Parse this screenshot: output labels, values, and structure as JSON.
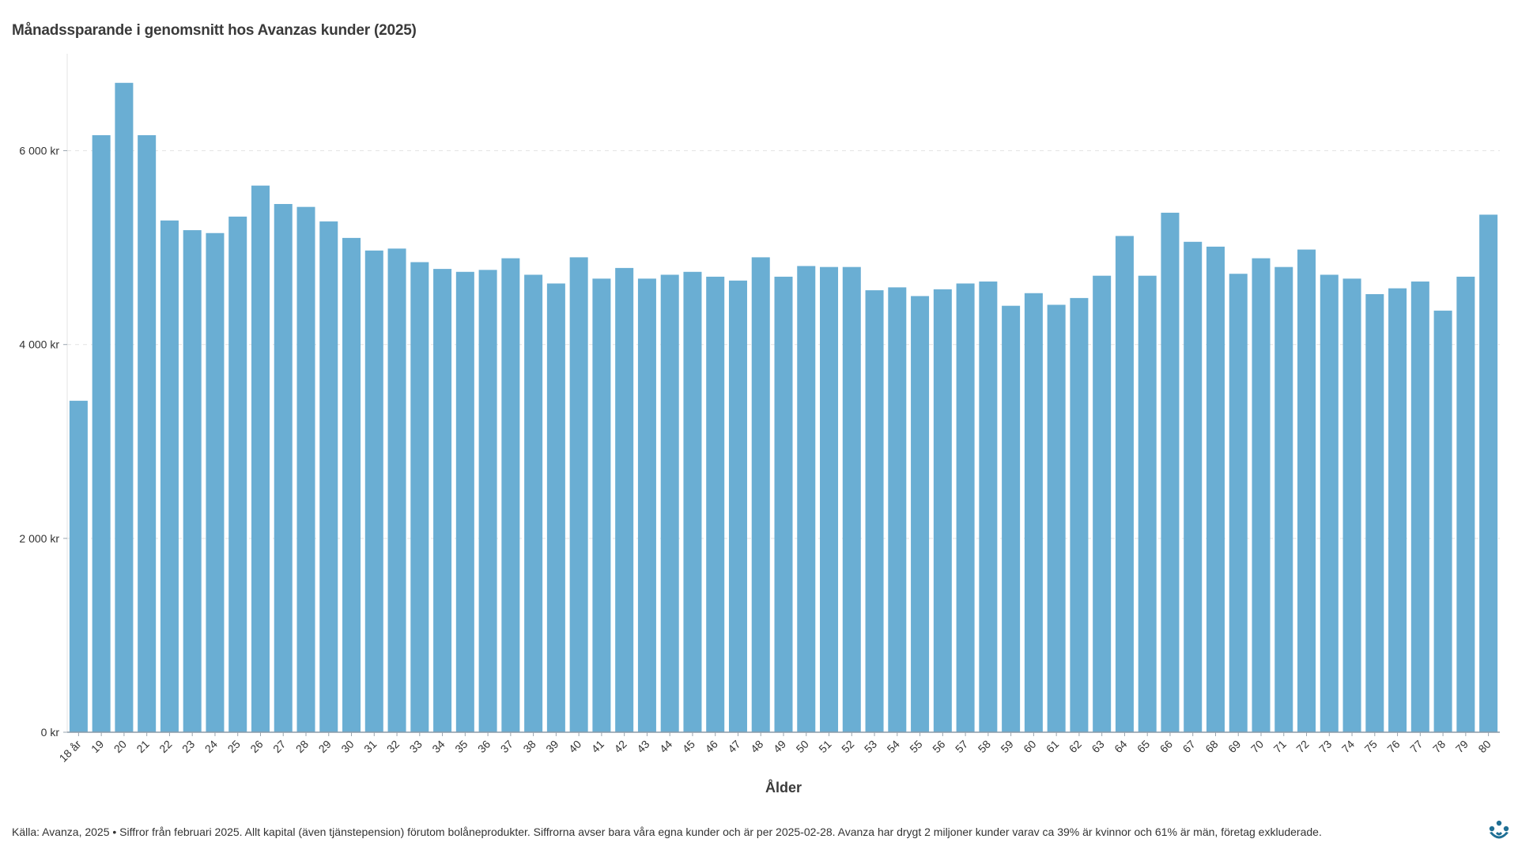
{
  "colors": {
    "bar": "#6aaed3",
    "grid": "#e3e3e3",
    "axis": "#8a9aa8",
    "logo": "#1f6f94"
  },
  "icons": {
    "logo": "avanza-logo-icon"
  },
  "chart_data": {
    "type": "bar",
    "title": "Månadssparande i genomsnitt hos Avanzas kunder (2025)",
    "xlabel": "Ålder",
    "ylabel": "",
    "ylim": [
      0,
      7000
    ],
    "yticks": [
      0,
      2000,
      4000,
      6000
    ],
    "ytick_labels": [
      "0 kr",
      "2 000 kr",
      "4 000 kr",
      "6 000 kr"
    ],
    "grid": "horizontal dashed",
    "legend": "none",
    "categories": [
      "18 år",
      "19",
      "20",
      "21",
      "22",
      "23",
      "24",
      "25",
      "26",
      "27",
      "28",
      "29",
      "30",
      "31",
      "32",
      "33",
      "34",
      "35",
      "36",
      "37",
      "38",
      "39",
      "40",
      "41",
      "42",
      "43",
      "44",
      "45",
      "46",
      "47",
      "48",
      "49",
      "50",
      "51",
      "52",
      "53",
      "54",
      "55",
      "56",
      "57",
      "58",
      "59",
      "60",
      "61",
      "62",
      "63",
      "64",
      "65",
      "66",
      "67",
      "68",
      "69",
      "70",
      "71",
      "72",
      "73",
      "74",
      "75",
      "76",
      "77",
      "78",
      "79",
      "80"
    ],
    "values": [
      3420,
      6160,
      6700,
      6160,
      5280,
      5180,
      5150,
      5320,
      5640,
      5450,
      5420,
      5270,
      5100,
      4970,
      4990,
      4850,
      4780,
      4750,
      4770,
      4890,
      4720,
      4630,
      4900,
      4680,
      4790,
      4680,
      4720,
      4750,
      4700,
      4660,
      4900,
      4700,
      4810,
      4800,
      4800,
      4560,
      4590,
      4500,
      4570,
      4630,
      4650,
      4400,
      4530,
      4410,
      4480,
      4710,
      5120,
      4710,
      5360,
      5060,
      5010,
      4730,
      4890,
      4800,
      4980,
      4720,
      4680,
      4520,
      4580,
      4650,
      4350,
      4700,
      5340
    ]
  },
  "footnote": "Källa: Avanza, 2025 • Siffror från februari 2025. Allt kapital (även tjänstepension) förutom bolåneprodukter. Siffrorna avser bara våra egna kunder och är per 2025-02-28. Avanza har drygt 2 miljoner kunder varav ca 39% är kvinnor och 61% är män, företag exkluderade."
}
